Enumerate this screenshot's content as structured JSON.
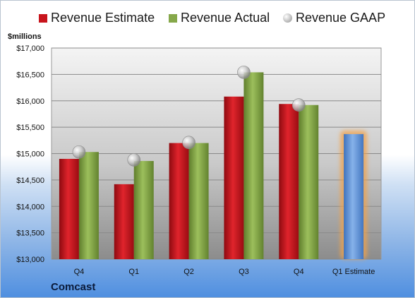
{
  "company": "Comcast",
  "chart_data": {
    "type": "bar",
    "ylabel": "$millions",
    "ylim": [
      13000,
      17000
    ],
    "ytick_step": 500,
    "ytick_labels": [
      "$13,000",
      "$13,500",
      "$14,000",
      "$14,500",
      "$15,000",
      "$15,500",
      "$16,000",
      "$16,500",
      "$17,000"
    ],
    "categories": [
      "Q4",
      "Q1",
      "Q2",
      "Q3",
      "Q4",
      "Q1 Estimate"
    ],
    "series": [
      {
        "name": "Revenue Estimate",
        "kind": "bar",
        "color": "#c8141c",
        "values": [
          14900,
          14420,
          15200,
          16080,
          15940,
          null
        ]
      },
      {
        "name": "Revenue Actual",
        "kind": "bar",
        "color": "#86a84a",
        "values": [
          15030,
          14860,
          15200,
          16540,
          15920,
          null
        ]
      },
      {
        "name": "Revenue GAAP",
        "kind": "marker",
        "color": "#b8b8b8",
        "values": [
          15030,
          14880,
          15210,
          16540,
          15920,
          null
        ]
      },
      {
        "name": "",
        "kind": "bar",
        "color": "#6a9ad8",
        "highlight": "#f2a24a",
        "values": [
          null,
          null,
          null,
          null,
          null,
          15370
        ]
      }
    ],
    "grid": true,
    "legend": "top"
  }
}
